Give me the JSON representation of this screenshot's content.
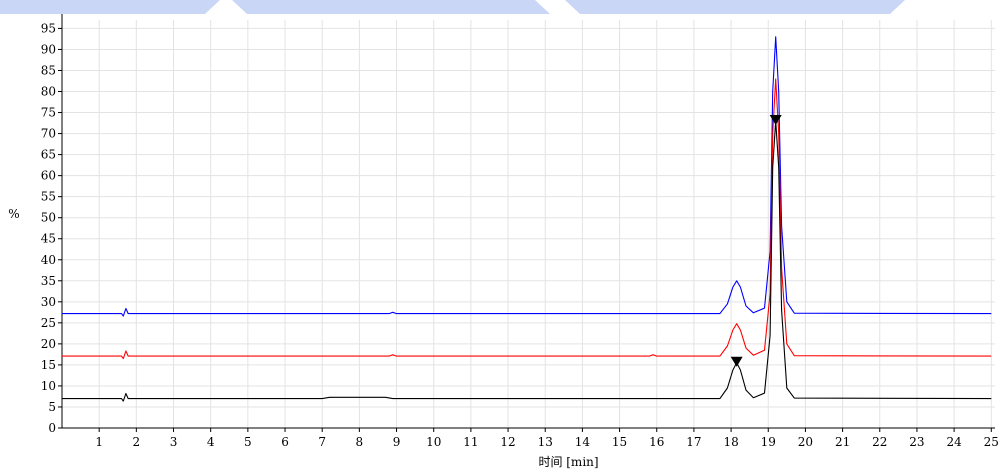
{
  "chart_data": {
    "type": "line",
    "title": "",
    "xlabel": "时间 [min]",
    "ylabel": "%",
    "xlim": [
      0,
      25.1
    ],
    "ylim": [
      0,
      97
    ],
    "x_ticks": [
      1,
      2,
      3,
      4,
      5,
      6,
      7,
      8,
      9,
      10,
      11,
      12,
      13,
      14,
      15,
      16,
      17,
      18,
      19,
      20,
      21,
      22,
      23,
      24,
      25
    ],
    "y_ticks": [
      0,
      5,
      10,
      15,
      20,
      25,
      30,
      35,
      40,
      45,
      50,
      55,
      60,
      65,
      70,
      75,
      80,
      85,
      90,
      95
    ],
    "grid": true,
    "series": [
      {
        "color": "#0000ff",
        "baseline": 27.2,
        "x": [
          0,
          1.6,
          1.65,
          1.72,
          1.78,
          1.9,
          8.8,
          8.9,
          9.0,
          17.7,
          17.9,
          18.05,
          18.15,
          18.25,
          18.4,
          18.6,
          18.9,
          19.05,
          19.12,
          19.2,
          19.28,
          19.36,
          19.5,
          19.7,
          25
        ],
        "y": [
          27.2,
          27.2,
          26.6,
          28.4,
          27.2,
          27.2,
          27.2,
          27.5,
          27.2,
          27.2,
          29.5,
          33.5,
          35.0,
          33.5,
          29.0,
          27.4,
          28.5,
          42.0,
          80.0,
          93.0,
          80.0,
          48.0,
          30.0,
          27.3,
          27.2
        ]
      },
      {
        "color": "#ff0000",
        "baseline": 17.1,
        "x": [
          0,
          1.6,
          1.65,
          1.72,
          1.78,
          1.9,
          8.8,
          8.9,
          9.0,
          15.8,
          15.9,
          16.0,
          17.7,
          17.9,
          18.05,
          18.15,
          18.25,
          18.4,
          18.6,
          18.9,
          19.05,
          19.12,
          19.2,
          19.28,
          19.36,
          19.5,
          19.7,
          25
        ],
        "y": [
          17.1,
          17.1,
          16.5,
          18.3,
          17.1,
          17.1,
          17.1,
          17.4,
          17.1,
          17.1,
          17.4,
          17.1,
          17.1,
          19.5,
          23.3,
          24.8,
          23.3,
          19.0,
          17.3,
          18.5,
          32.0,
          70.0,
          83.0,
          70.0,
          38.0,
          20.0,
          17.2,
          17.1
        ]
      },
      {
        "color": "#000000",
        "baseline": 7.0,
        "x": [
          0,
          1.6,
          1.65,
          1.72,
          1.78,
          1.9,
          7.0,
          7.2,
          8.7,
          8.9,
          17.7,
          17.9,
          18.05,
          18.15,
          18.25,
          18.4,
          18.6,
          18.9,
          19.05,
          19.12,
          19.2,
          19.28,
          19.36,
          19.5,
          19.7,
          25
        ],
        "y": [
          7.0,
          7.0,
          6.4,
          8.2,
          7.0,
          7.0,
          7.0,
          7.3,
          7.3,
          7.0,
          7.0,
          9.5,
          13.8,
          15.5,
          13.8,
          9.0,
          7.2,
          8.3,
          22.0,
          62.0,
          73.0,
          62.0,
          28.0,
          9.5,
          7.1,
          7.0
        ]
      }
    ],
    "markers": [
      {
        "x": 18.15,
        "y": 15.5,
        "shape": "down-triangle",
        "color": "#000000"
      },
      {
        "x": 19.2,
        "y": 73.0,
        "shape": "down-triangle",
        "color": "#000000"
      }
    ],
    "colors": {
      "grid": "#e3e3e3",
      "axis": "#000000",
      "top_band": "#c7d4f5"
    }
  }
}
